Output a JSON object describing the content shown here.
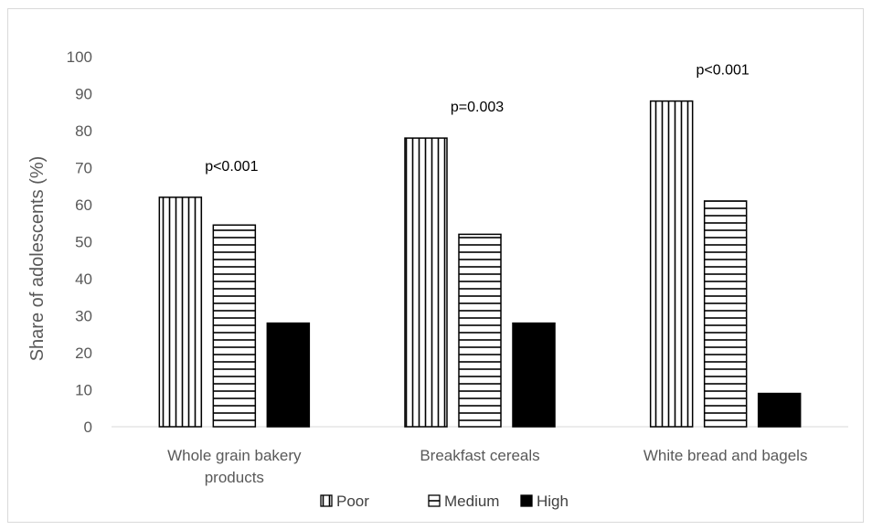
{
  "chart_data": {
    "type": "bar",
    "ylabel": "Share of adolescents (%)",
    "ylim": [
      0,
      100
    ],
    "yticks": [
      0,
      10,
      20,
      30,
      40,
      50,
      60,
      70,
      80,
      90,
      100
    ],
    "categories": [
      [
        "Whole grain bakery",
        "products"
      ],
      [
        "Breakfast cereals"
      ],
      [
        "White bread and bagels"
      ]
    ],
    "series": [
      {
        "name": "Poor",
        "pattern": "vertical-stripes",
        "values": [
          62,
          78,
          88
        ]
      },
      {
        "name": "Medium",
        "pattern": "horizontal-stripes",
        "values": [
          54.5,
          52,
          61
        ]
      },
      {
        "name": "High",
        "pattern": "solid",
        "values": [
          28,
          28,
          9
        ]
      }
    ],
    "annotations": [
      "p<0.001",
      "p=0.003",
      "p<0.001"
    ],
    "grid": false,
    "legend_position": "bottom"
  }
}
